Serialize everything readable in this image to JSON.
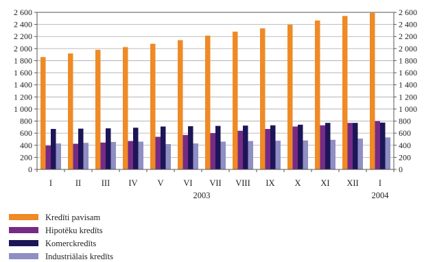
{
  "chart_data": {
    "type": "bar",
    "title": "",
    "xlabel": "",
    "ylabel": "",
    "ylim": [
      0,
      2600
    ],
    "yticks": [
      0,
      200,
      400,
      600,
      800,
      1000,
      1200,
      1400,
      1600,
      1800,
      2000,
      2200,
      2400,
      2600
    ],
    "ytick_labels": [
      "0",
      "200",
      "400",
      "600",
      "800",
      "1 000",
      "1 200",
      "1 400",
      "1 600",
      "1 800",
      "2 000",
      "2 200",
      "2 400",
      "2 600"
    ],
    "grid": "horizontal",
    "legend_position": "bottom-left",
    "categories": [
      "I",
      "II",
      "III",
      "IV",
      "V",
      "VI",
      "VII",
      "VIII",
      "IX",
      "X",
      "XI",
      "XII",
      "I"
    ],
    "year_labels": [
      {
        "category_index": 5.5,
        "text": "2003"
      },
      {
        "category_index": 12,
        "text": "2004"
      }
    ],
    "series": [
      {
        "name": "Kredīti pavisam",
        "color": "#ef8a25",
        "values": [
          1860,
          1920,
          1980,
          2025,
          2080,
          2140,
          2215,
          2280,
          2335,
          2395,
          2465,
          2540,
          2590
        ]
      },
      {
        "name": "Hipotēku kredīts",
        "color": "#762b86",
        "values": [
          395,
          425,
          445,
          470,
          540,
          570,
          600,
          640,
          670,
          710,
          730,
          770,
          800
        ]
      },
      {
        "name": "Komerckredīts",
        "color": "#1c1658",
        "values": [
          670,
          675,
          680,
          690,
          710,
          715,
          720,
          725,
          730,
          740,
          770,
          770,
          775
        ]
      },
      {
        "name": "Industriālais kredīts",
        "color": "#8f8fc4",
        "values": [
          430,
          440,
          455,
          460,
          420,
          430,
          460,
          470,
          475,
          480,
          490,
          510,
          530
        ]
      }
    ]
  }
}
